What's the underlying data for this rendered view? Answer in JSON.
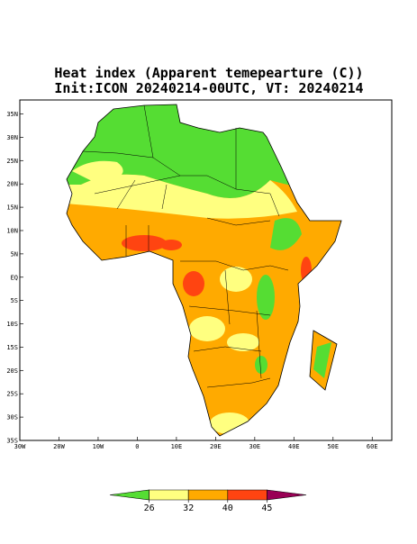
{
  "title": "Heat index (Apparent temepearture (C))",
  "subtitle": "Init:ICON 20240214-00UTC, VT: 20240214",
  "map": {
    "lonlim": [
      -30,
      65
    ],
    "latlim": [
      -35,
      38
    ],
    "lon_ticks": [
      {
        "value": -30,
        "label": "30W"
      },
      {
        "value": -20,
        "label": "20W"
      },
      {
        "value": -10,
        "label": "10W"
      },
      0,
      {
        "value": 10,
        "label": "10E"
      },
      {
        "value": 20,
        "label": "20E"
      },
      {
        "value": 30,
        "label": "30E"
      },
      {
        "value": 40,
        "label": "40E"
      },
      {
        "value": 50,
        "label": "50E"
      },
      {
        "value": 60,
        "label": "60E"
      }
    ],
    "lat_ticks": [
      {
        "value": 35,
        "label": "35N"
      },
      {
        "value": 30,
        "label": "30N"
      },
      {
        "value": 25,
        "label": "25N"
      },
      {
        "value": 20,
        "label": "20N"
      },
      {
        "value": 15,
        "label": "15N"
      },
      {
        "value": 10,
        "label": "10N"
      },
      {
        "value": 5,
        "label": "5N"
      },
      {
        "value": 0,
        "label": "EQ"
      },
      {
        "value": -5,
        "label": "5S"
      },
      {
        "value": -10,
        "label": "10S"
      },
      {
        "value": -15,
        "label": "15S"
      },
      {
        "value": -20,
        "label": "20S"
      },
      {
        "value": -25,
        "label": "25S"
      },
      {
        "value": -30,
        "label": "30S"
      },
      {
        "value": -35,
        "label": "35S"
      }
    ]
  },
  "colorbar": {
    "levels": [
      26,
      32,
      40,
      45
    ],
    "colors": [
      "#55dd33",
      "#ffff80",
      "#ffaa00",
      "#ff4411",
      "#990055"
    ]
  }
}
